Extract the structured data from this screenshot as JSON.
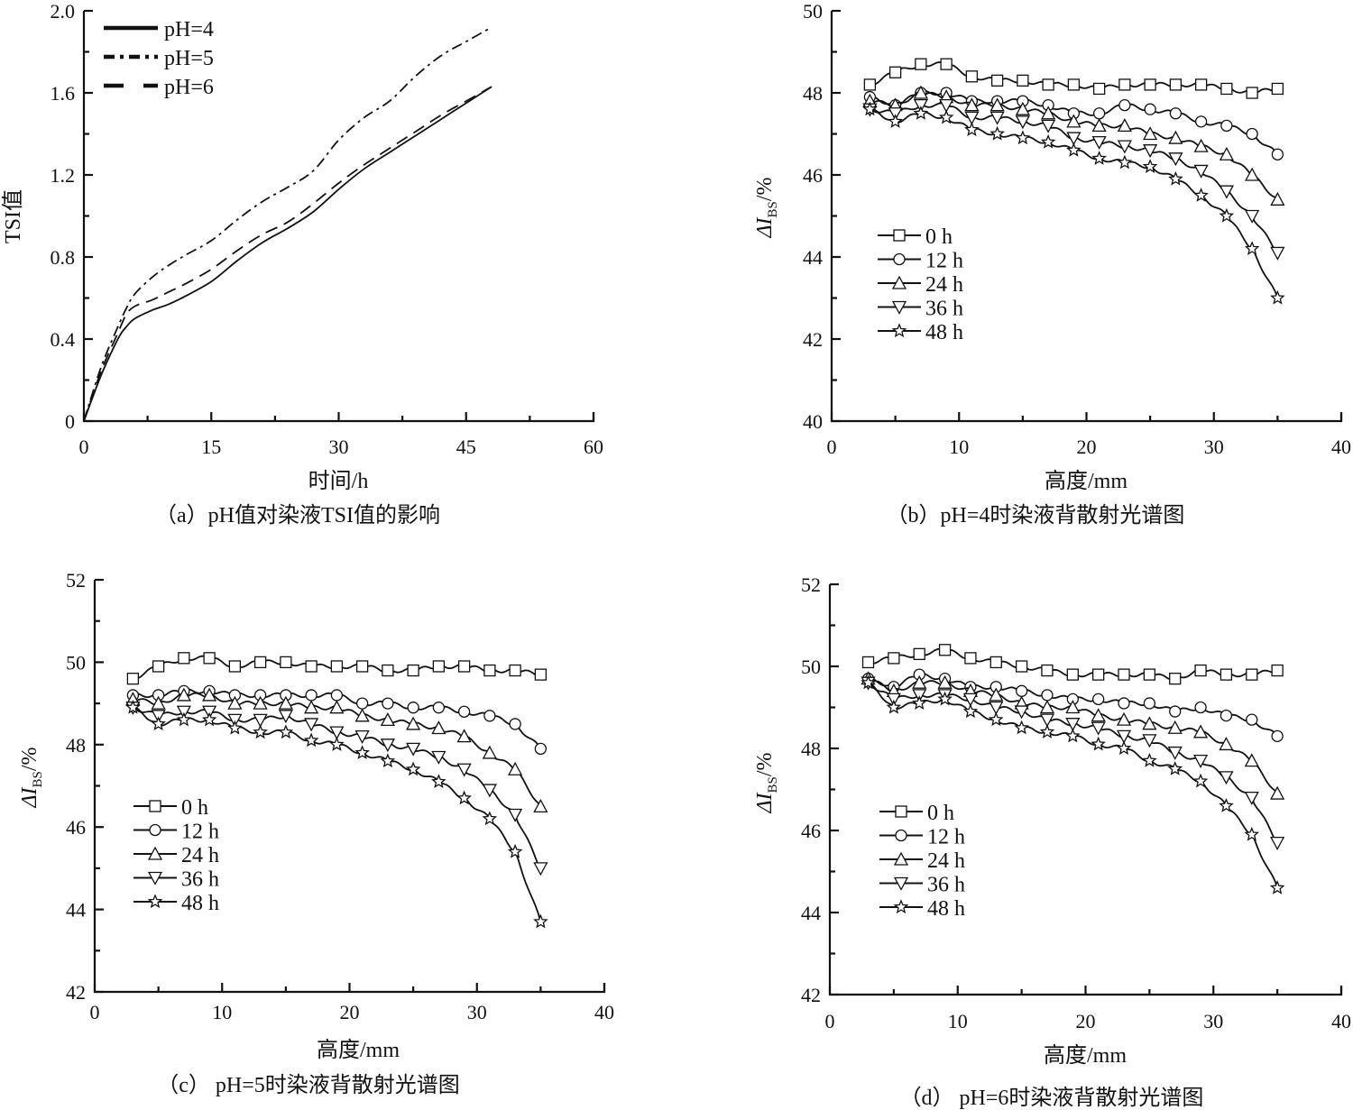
{
  "figure": {
    "panels_count": 4
  },
  "chart_data": [
    {
      "id": "a",
      "type": "line",
      "caption": "（a）pH值对染液TSI值的影响",
      "xlabel": "时间/h",
      "ylabel": "TSI值",
      "xlim": [
        0,
        60
      ],
      "ylim": [
        0,
        2.0
      ],
      "xticks": [
        0,
        15,
        30,
        45,
        60
      ],
      "xtick_labels": [
        "0",
        "15",
        "30",
        "45",
        "60"
      ],
      "yticks": [
        0,
        0.4,
        0.8,
        1.2,
        1.6,
        2.0
      ],
      "ytick_labels": [
        "0",
        "0.4",
        "0.8",
        "1.2",
        "1.6",
        "2.0"
      ],
      "grid": false,
      "legend_position": "top-left",
      "series": [
        {
          "name": "pH=4",
          "style": "solid",
          "x": [
            0,
            2,
            4,
            5,
            6,
            8,
            10,
            12,
            15,
            18,
            21,
            24,
            27,
            30,
            33,
            36,
            39,
            42,
            45,
            48
          ],
          "y": [
            0,
            0.22,
            0.4,
            0.46,
            0.5,
            0.54,
            0.57,
            0.61,
            0.68,
            0.78,
            0.87,
            0.94,
            1.02,
            1.13,
            1.23,
            1.31,
            1.39,
            1.47,
            1.55,
            1.63
          ]
        },
        {
          "name": "pH=5",
          "style": "dash-dot",
          "x": [
            0,
            2,
            4,
            5,
            6,
            8,
            10,
            12,
            15,
            18,
            21,
            24,
            27,
            30,
            33,
            36,
            39,
            42,
            45,
            48
          ],
          "y": [
            0,
            0.26,
            0.46,
            0.55,
            0.62,
            0.7,
            0.76,
            0.81,
            0.88,
            0.98,
            1.07,
            1.14,
            1.22,
            1.37,
            1.48,
            1.56,
            1.68,
            1.78,
            1.85,
            1.92
          ]
        },
        {
          "name": "pH=6",
          "style": "dash",
          "x": [
            0,
            2,
            4,
            5,
            6,
            8,
            10,
            12,
            15,
            18,
            21,
            24,
            27,
            30,
            33,
            36,
            39,
            42,
            45,
            48
          ],
          "y": [
            0,
            0.24,
            0.43,
            0.52,
            0.56,
            0.59,
            0.63,
            0.67,
            0.74,
            0.83,
            0.91,
            0.97,
            1.06,
            1.16,
            1.25,
            1.33,
            1.41,
            1.49,
            1.56,
            1.63
          ]
        }
      ]
    },
    {
      "id": "b",
      "type": "line",
      "caption": "（b）pH=4时染液背散射光谱图",
      "xlabel": "高度/mm",
      "ylabel": "ΔI_BS/%",
      "ylabel_main": "ΔI",
      "ylabel_sub": "BS",
      "ylabel_tail": "/%",
      "xlim": [
        0,
        40
      ],
      "ylim": [
        40,
        50
      ],
      "xticks": [
        0,
        10,
        20,
        30,
        40
      ],
      "xtick_labels": [
        "0",
        "10",
        "20",
        "30",
        "40"
      ],
      "yticks": [
        40,
        42,
        44,
        46,
        48,
        50
      ],
      "ytick_labels": [
        "40",
        "42",
        "44",
        "46",
        "48",
        "50"
      ],
      "grid": false,
      "legend_position": "lower-left",
      "series": [
        {
          "name": "0 h",
          "marker": "square",
          "x": [
            3,
            5,
            7,
            9,
            11,
            13,
            15,
            17,
            19,
            21,
            23,
            25,
            27,
            29,
            31,
            33,
            35
          ],
          "y": [
            48.2,
            48.5,
            48.7,
            48.7,
            48.4,
            48.3,
            48.3,
            48.2,
            48.2,
            48.1,
            48.2,
            48.2,
            48.2,
            48.2,
            48.1,
            48.0,
            48.1
          ]
        },
        {
          "name": "12 h",
          "marker": "circle",
          "x": [
            3,
            5,
            7,
            9,
            11,
            13,
            15,
            17,
            19,
            21,
            23,
            25,
            27,
            29,
            31,
            33,
            35
          ],
          "y": [
            47.9,
            47.7,
            48.0,
            48.0,
            47.8,
            47.8,
            47.8,
            47.7,
            47.5,
            47.5,
            47.7,
            47.6,
            47.5,
            47.3,
            47.2,
            47.0,
            46.5
          ]
        },
        {
          "name": "24 h",
          "marker": "triangle-up",
          "x": [
            3,
            5,
            7,
            9,
            11,
            13,
            15,
            17,
            19,
            21,
            23,
            25,
            27,
            29,
            31,
            33,
            35
          ],
          "y": [
            47.8,
            47.7,
            48.0,
            47.9,
            47.7,
            47.7,
            47.6,
            47.5,
            47.3,
            47.2,
            47.2,
            47.0,
            46.9,
            46.7,
            46.5,
            46.0,
            45.4
          ]
        },
        {
          "name": "36 h",
          "marker": "triangle-down",
          "x": [
            3,
            5,
            7,
            9,
            11,
            13,
            15,
            17,
            19,
            21,
            23,
            25,
            27,
            29,
            31,
            33,
            35
          ],
          "y": [
            47.6,
            47.5,
            47.7,
            47.7,
            47.4,
            47.4,
            47.3,
            47.2,
            46.9,
            46.8,
            46.7,
            46.6,
            46.4,
            46.1,
            45.6,
            45.0,
            44.1
          ]
        },
        {
          "name": "48 h",
          "marker": "star",
          "x": [
            3,
            5,
            7,
            9,
            11,
            13,
            15,
            17,
            19,
            21,
            23,
            25,
            27,
            29,
            31,
            33,
            35
          ],
          "y": [
            47.6,
            47.3,
            47.5,
            47.4,
            47.1,
            47.0,
            46.9,
            46.8,
            46.6,
            46.4,
            46.3,
            46.2,
            45.9,
            45.5,
            45.0,
            44.2,
            43.0
          ]
        }
      ]
    },
    {
      "id": "c",
      "type": "line",
      "caption": "（c） pH=5时染液背散射光谱图",
      "xlabel": "高度/mm",
      "ylabel": "ΔI_BS/%",
      "ylabel_main": "ΔI",
      "ylabel_sub": "BS",
      "ylabel_tail": "/%",
      "xlim": [
        0,
        40
      ],
      "ylim": [
        42,
        52
      ],
      "xticks": [
        0,
        10,
        20,
        30,
        40
      ],
      "xtick_labels": [
        "0",
        "10",
        "20",
        "30",
        "40"
      ],
      "yticks": [
        42,
        44,
        46,
        48,
        50,
        52
      ],
      "ytick_labels": [
        "42",
        "44",
        "46",
        "48",
        "50",
        "52"
      ],
      "grid": false,
      "legend_position": "lower-left",
      "series": [
        {
          "name": "0 h",
          "marker": "square",
          "x": [
            3,
            5,
            7,
            9,
            11,
            13,
            15,
            17,
            19,
            21,
            23,
            25,
            27,
            29,
            31,
            33,
            35
          ],
          "y": [
            49.6,
            49.9,
            50.1,
            50.1,
            49.9,
            50.0,
            50.0,
            49.9,
            49.9,
            49.9,
            49.8,
            49.8,
            49.9,
            49.9,
            49.8,
            49.8,
            49.7
          ]
        },
        {
          "name": "12 h",
          "marker": "circle",
          "x": [
            3,
            5,
            7,
            9,
            11,
            13,
            15,
            17,
            19,
            21,
            23,
            25,
            27,
            29,
            31,
            33,
            35
          ],
          "y": [
            49.2,
            49.2,
            49.3,
            49.3,
            49.2,
            49.2,
            49.2,
            49.2,
            49.2,
            49.0,
            49.0,
            48.9,
            48.9,
            48.8,
            48.7,
            48.5,
            47.9
          ]
        },
        {
          "name": "24 h",
          "marker": "triangle-up",
          "x": [
            3,
            5,
            7,
            9,
            11,
            13,
            15,
            17,
            19,
            21,
            23,
            25,
            27,
            29,
            31,
            33,
            35
          ],
          "y": [
            49.1,
            49.0,
            49.2,
            49.2,
            49.0,
            49.0,
            49.0,
            48.9,
            48.9,
            48.7,
            48.6,
            48.5,
            48.4,
            48.2,
            47.8,
            47.4,
            46.5
          ]
        },
        {
          "name": "36 h",
          "marker": "triangle-down",
          "x": [
            3,
            5,
            7,
            9,
            11,
            13,
            15,
            17,
            19,
            21,
            23,
            25,
            27,
            29,
            31,
            33,
            35
          ],
          "y": [
            48.9,
            48.7,
            48.8,
            48.8,
            48.6,
            48.6,
            48.7,
            48.5,
            48.3,
            48.2,
            48.0,
            47.9,
            47.7,
            47.4,
            46.9,
            46.3,
            45.0
          ]
        },
        {
          "name": "48 h",
          "marker": "star",
          "x": [
            3,
            5,
            7,
            9,
            11,
            13,
            15,
            17,
            19,
            21,
            23,
            25,
            27,
            29,
            31,
            33,
            35
          ],
          "y": [
            48.9,
            48.5,
            48.6,
            48.6,
            48.4,
            48.3,
            48.3,
            48.1,
            48.0,
            47.8,
            47.6,
            47.4,
            47.1,
            46.7,
            46.2,
            45.4,
            43.7
          ]
        }
      ]
    },
    {
      "id": "d",
      "type": "line",
      "caption": "（d） pH=6时染液背散射光谱图",
      "xlabel": "高度/mm",
      "ylabel": "ΔI_BS/%",
      "ylabel_main": "ΔI",
      "ylabel_sub": "BS",
      "ylabel_tail": "/%",
      "xlim": [
        0,
        40
      ],
      "ylim": [
        42,
        52
      ],
      "xticks": [
        0,
        10,
        20,
        30,
        40
      ],
      "xtick_labels": [
        "0",
        "10",
        "20",
        "30",
        "40"
      ],
      "yticks": [
        42,
        44,
        46,
        48,
        50,
        52
      ],
      "ytick_labels": [
        "42",
        "44",
        "46",
        "48",
        "50",
        "52"
      ],
      "grid": false,
      "legend_position": "lower-left",
      "series": [
        {
          "name": "0 h",
          "marker": "square",
          "x": [
            3,
            5,
            7,
            9,
            11,
            13,
            15,
            17,
            19,
            21,
            23,
            25,
            27,
            29,
            31,
            33,
            35
          ],
          "y": [
            50.1,
            50.2,
            50.3,
            50.4,
            50.2,
            50.1,
            50.0,
            49.9,
            49.8,
            49.8,
            49.8,
            49.8,
            49.7,
            49.9,
            49.8,
            49.8,
            49.9
          ]
        },
        {
          "name": "12 h",
          "marker": "circle",
          "x": [
            3,
            5,
            7,
            9,
            11,
            13,
            15,
            17,
            19,
            21,
            23,
            25,
            27,
            29,
            31,
            33,
            35
          ],
          "y": [
            49.7,
            49.5,
            49.8,
            49.7,
            49.5,
            49.5,
            49.4,
            49.3,
            49.2,
            49.2,
            49.1,
            49.1,
            48.9,
            49.0,
            48.8,
            48.7,
            48.3
          ]
        },
        {
          "name": "24 h",
          "marker": "triangle-up",
          "x": [
            3,
            5,
            7,
            9,
            11,
            13,
            15,
            17,
            19,
            21,
            23,
            25,
            27,
            29,
            31,
            33,
            35
          ],
          "y": [
            49.7,
            49.4,
            49.6,
            49.6,
            49.4,
            49.3,
            49.1,
            49.0,
            49.0,
            48.8,
            48.7,
            48.6,
            48.5,
            48.4,
            48.1,
            47.7,
            46.9
          ]
        },
        {
          "name": "36 h",
          "marker": "triangle-down",
          "x": [
            3,
            5,
            7,
            9,
            11,
            13,
            15,
            17,
            19,
            21,
            23,
            25,
            27,
            29,
            31,
            33,
            35
          ],
          "y": [
            49.6,
            49.2,
            49.3,
            49.3,
            49.2,
            49.0,
            48.9,
            48.7,
            48.6,
            48.5,
            48.3,
            48.2,
            47.9,
            47.7,
            47.3,
            46.8,
            45.7
          ]
        },
        {
          "name": "48 h",
          "marker": "star",
          "x": [
            3,
            5,
            7,
            9,
            11,
            13,
            15,
            17,
            19,
            21,
            23,
            25,
            27,
            29,
            31,
            33,
            35
          ],
          "y": [
            49.6,
            49.0,
            49.1,
            49.2,
            48.9,
            48.7,
            48.5,
            48.4,
            48.3,
            48.1,
            48.0,
            47.7,
            47.5,
            47.2,
            46.6,
            45.9,
            44.6
          ]
        }
      ]
    }
  ]
}
